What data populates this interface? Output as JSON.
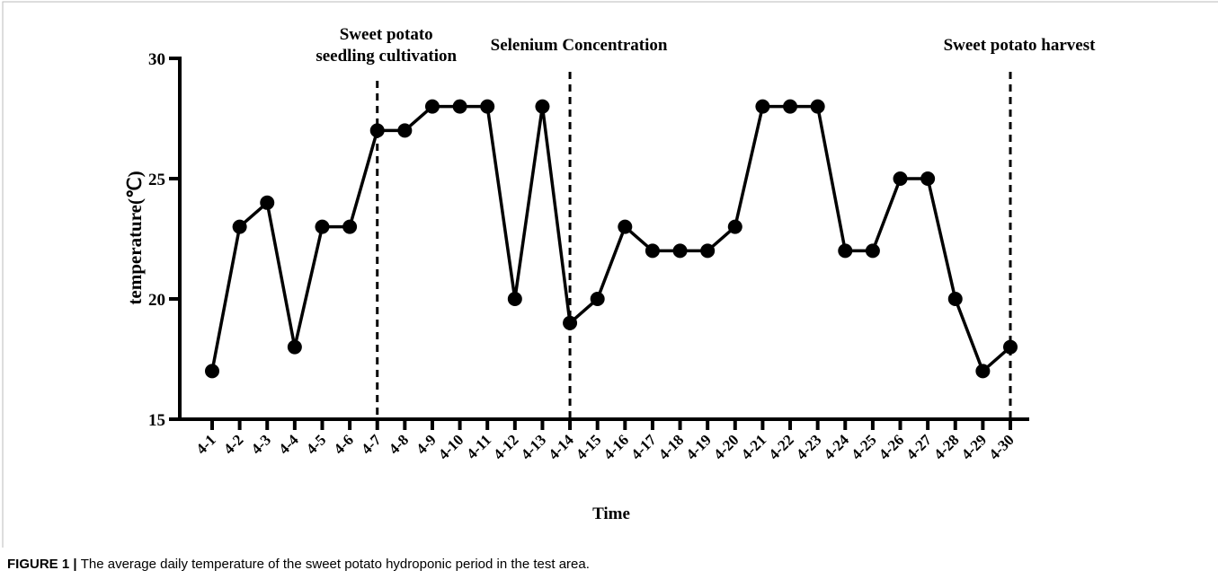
{
  "chart_data": {
    "type": "line",
    "xlabel": "Time",
    "ylabel": "temperature(℃)",
    "categories": [
      "4-1",
      "4-2",
      "4-3",
      "4-4",
      "4-5",
      "4-6",
      "4-7",
      "4-8",
      "4-9",
      "4-10",
      "4-11",
      "4-12",
      "4-13",
      "4-14",
      "4-15",
      "4-16",
      "4-17",
      "4-18",
      "4-19",
      "4-20",
      "4-21",
      "4-22",
      "4-23",
      "4-24",
      "4-25",
      "4-26",
      "4-27",
      "4-28",
      "4-29",
      "4-30"
    ],
    "series": [
      {
        "name": "temperature",
        "color": "#000000",
        "values": [
          17,
          23,
          24,
          18,
          23,
          23,
          27,
          27,
          28,
          28,
          28,
          20,
          28,
          19,
          20,
          23,
          22,
          22,
          22,
          23,
          28,
          28,
          28,
          22,
          22,
          25,
          25,
          20,
          17,
          18
        ]
      }
    ],
    "ylim": [
      15,
      30
    ],
    "yticks": [
      15,
      20,
      25,
      30
    ],
    "annotations": [
      {
        "x": "4-7",
        "lines": [
          "Sweet potato",
          "seedling cultivation"
        ]
      },
      {
        "x": "4-14",
        "lines": [
          "Selenium Concentration"
        ]
      },
      {
        "x": "4-30",
        "lines": [
          "Sweet potato harvest"
        ]
      }
    ]
  },
  "caption": {
    "label": "FIGURE 1 |",
    "text": "The average daily temperature of the sweet potato hydroponic period in the test area."
  }
}
